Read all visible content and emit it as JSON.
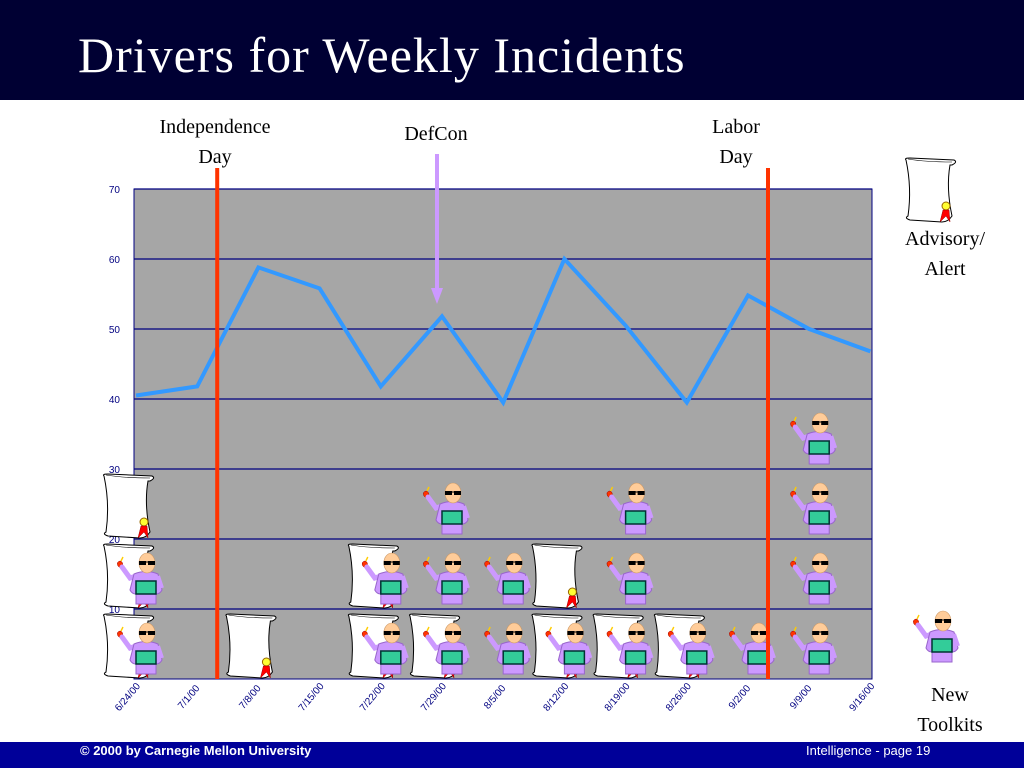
{
  "slide": {
    "title": "Drivers for Weekly Incidents",
    "footer_left": "© 2000 by Carnegie Mellon University",
    "footer_right": "Intelligence - page 19"
  },
  "annotations": {
    "independence_day": [
      "Independence",
      "Day"
    ],
    "defcon": "DefCon",
    "labor_day": [
      "Labor",
      "Day"
    ],
    "advisory": [
      "Advisory/",
      "Alert"
    ],
    "toolkits": [
      "New",
      "Toolkits"
    ]
  },
  "chart_data": {
    "type": "line",
    "categories": [
      "6/24/00",
      "7/1/00",
      "7/8/00",
      "7/15/00",
      "7/22/00",
      "7/29/00",
      "8/5/00",
      "8/12/00",
      "8/19/00",
      "8/26/00",
      "9/2/00",
      "9/9/00",
      "9/16/00"
    ],
    "values": [
      40.5,
      41.8,
      58.8,
      55.8,
      41.8,
      51.8,
      39.5,
      60.0,
      50.5,
      39.5,
      54.8,
      50.0,
      46.8
    ],
    "ylim": [
      0,
      70
    ],
    "yticks": [
      10,
      20,
      30,
      40,
      50,
      60,
      70
    ],
    "grid": true,
    "colors": {
      "line": "#3399ff",
      "plot_bg": "#a6a6a6",
      "grid": "#000080",
      "event_line": "#ff3300",
      "defcon_arrow": "#cc99ff"
    },
    "event_markers": [
      "7/1/00",
      "9/2/00"
    ],
    "marker_counts": {
      "advisory_alert": [
        3,
        0,
        1,
        0,
        2,
        1,
        0,
        2,
        1,
        1,
        0,
        0,
        0
      ],
      "new_toolkit": [
        2,
        0,
        0,
        0,
        2,
        3,
        2,
        1,
        3,
        1,
        1,
        4,
        0
      ]
    }
  }
}
